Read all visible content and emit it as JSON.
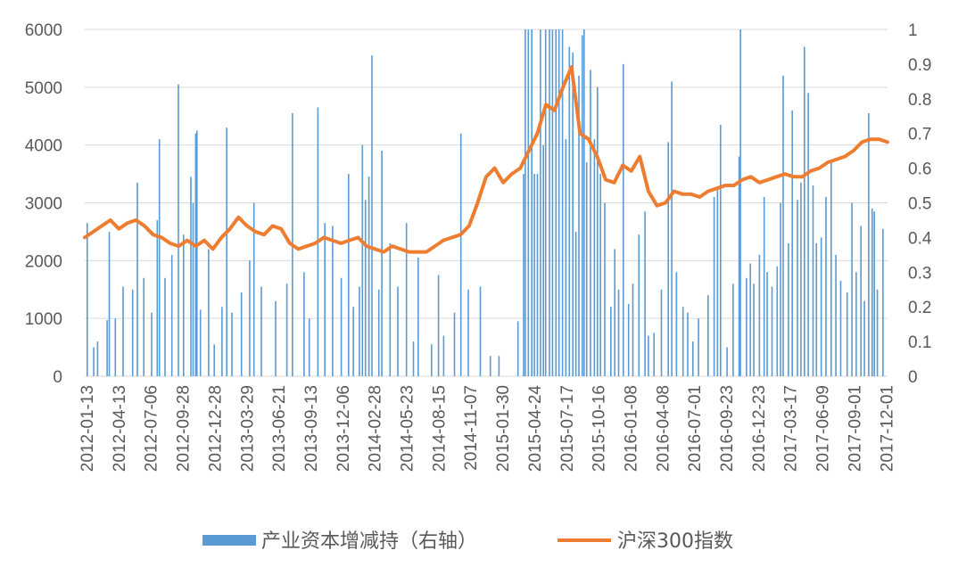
{
  "chart_data": {
    "type": "bar+line",
    "x_ticks": [
      "2012-01-13",
      "2012-04-13",
      "2012-07-06",
      "2012-09-28",
      "2012-12-28",
      "2013-03-29",
      "2013-06-21",
      "2013-09-13",
      "2013-12-06",
      "2014-02-28",
      "2014-05-23",
      "2014-08-15",
      "2014-11-07",
      "2015-01-30",
      "2015-04-24",
      "2015-07-17",
      "2015-10-16",
      "2016-01-08",
      "2016-04-08",
      "2016-07-01",
      "2016-09-23",
      "2016-12-23",
      "2017-03-17",
      "2017-06-09",
      "2017-09-01",
      "2017-12-01"
    ],
    "y_left": {
      "min": 0,
      "max": 6000,
      "ticks": [
        "0",
        "1000",
        "2000",
        "3000",
        "4000",
        "5000",
        "6000"
      ]
    },
    "y_right": {
      "min": 0,
      "max": 1,
      "ticks": [
        "0",
        "0.1",
        "0.2",
        "0.3",
        "0.4",
        "0.5",
        "0.6",
        "0.7",
        "0.8",
        "0.9",
        "1"
      ]
    },
    "grid": "horizontal",
    "legend": {
      "position": "bottom",
      "bar_label": "产业资本增减持（右轴）",
      "line_label": "沪深300指数"
    },
    "colors": {
      "bar": "#5b9bd5",
      "line": "#ed7d31",
      "grid": "#d9d9d9",
      "text": "#595959"
    },
    "line_series": {
      "name": "沪深300指数",
      "points": [
        [
          0,
          2400
        ],
        [
          1,
          2500
        ],
        [
          2,
          2600
        ],
        [
          3,
          2700
        ],
        [
          4,
          2550
        ],
        [
          5,
          2650
        ],
        [
          6,
          2700
        ],
        [
          7,
          2600
        ],
        [
          8,
          2450
        ],
        [
          9,
          2400
        ],
        [
          10,
          2300
        ],
        [
          11,
          2250
        ],
        [
          12,
          2350
        ],
        [
          13,
          2250
        ],
        [
          14,
          2350
        ],
        [
          15,
          2200
        ],
        [
          16,
          2400
        ],
        [
          17,
          2550
        ],
        [
          18,
          2750
        ],
        [
          19,
          2600
        ],
        [
          20,
          2500
        ],
        [
          21,
          2450
        ],
        [
          22,
          2600
        ],
        [
          23,
          2550
        ],
        [
          24,
          2300
        ],
        [
          25,
          2200
        ],
        [
          26,
          2250
        ],
        [
          27,
          2300
        ],
        [
          28,
          2400
        ],
        [
          29,
          2350
        ],
        [
          30,
          2300
        ],
        [
          31,
          2350
        ],
        [
          32,
          2400
        ],
        [
          33,
          2250
        ],
        [
          34,
          2200
        ],
        [
          35,
          2150
        ],
        [
          36,
          2250
        ],
        [
          37,
          2200
        ],
        [
          38,
          2150
        ],
        [
          39,
          2150
        ],
        [
          40,
          2150
        ],
        [
          41,
          2250
        ],
        [
          42,
          2350
        ],
        [
          43,
          2400
        ],
        [
          44,
          2450
        ],
        [
          45,
          2600
        ],
        [
          46,
          3000
        ],
        [
          47,
          3450
        ],
        [
          48,
          3600
        ],
        [
          49,
          3350
        ],
        [
          50,
          3500
        ],
        [
          51,
          3600
        ],
        [
          52,
          3900
        ],
        [
          53,
          4200
        ],
        [
          54,
          4700
        ],
        [
          55,
          4600
        ],
        [
          56,
          5000
        ],
        [
          57,
          5350
        ],
        [
          58,
          4200
        ],
        [
          59,
          4100
        ],
        [
          60,
          3800
        ],
        [
          61,
          3400
        ],
        [
          62,
          3350
        ],
        [
          63,
          3650
        ],
        [
          64,
          3550
        ],
        [
          65,
          3800
        ],
        [
          66,
          3200
        ],
        [
          67,
          2950
        ],
        [
          68,
          3000
        ],
        [
          69,
          3200
        ],
        [
          70,
          3150
        ],
        [
          71,
          3150
        ],
        [
          72,
          3100
        ],
        [
          73,
          3200
        ],
        [
          74,
          3250
        ],
        [
          75,
          3300
        ],
        [
          76,
          3300
        ],
        [
          77,
          3400
        ],
        [
          78,
          3450
        ],
        [
          79,
          3350
        ],
        [
          80,
          3400
        ],
        [
          81,
          3450
        ],
        [
          82,
          3500
        ],
        [
          83,
          3450
        ],
        [
          84,
          3450
        ],
        [
          85,
          3550
        ],
        [
          86,
          3600
        ],
        [
          87,
          3700
        ],
        [
          88,
          3750
        ],
        [
          89,
          3800
        ],
        [
          90,
          3900
        ],
        [
          91,
          4050
        ],
        [
          92,
          4100
        ],
        [
          93,
          4100
        ],
        [
          94,
          4050
        ]
      ]
    },
    "bar_series": {
      "name": "产业资本增减持（右轴）",
      "spikes": [
        [
          0,
          2650
        ],
        [
          1.5,
          500
        ],
        [
          2.4,
          600
        ],
        [
          4.6,
          970
        ],
        [
          5.1,
          2500
        ],
        [
          6.5,
          1000
        ],
        [
          8.3,
          1550
        ],
        [
          10.5,
          1500
        ],
        [
          11.6,
          3350
        ],
        [
          13.1,
          1700
        ],
        [
          14.9,
          1100
        ],
        [
          16.2,
          2700
        ],
        [
          16.7,
          4100
        ],
        [
          18,
          1700
        ],
        [
          19.6,
          2100
        ],
        [
          21.1,
          5050
        ],
        [
          22.3,
          2450
        ],
        [
          24,
          3450
        ],
        [
          24.5,
          3000
        ],
        [
          25.1,
          4200
        ],
        [
          25.4,
          4250
        ],
        [
          26.2,
          1150
        ],
        [
          28.1,
          2200
        ],
        [
          29.4,
          550
        ],
        [
          31.2,
          1200
        ],
        [
          32.3,
          4300
        ],
        [
          33.5,
          1100
        ],
        [
          35.7,
          1450
        ],
        [
          37.6,
          2000
        ],
        [
          38.6,
          3000
        ],
        [
          40.3,
          1550
        ],
        [
          43.6,
          1300
        ],
        [
          46.2,
          1600
        ],
        [
          47.5,
          4550
        ],
        [
          50.2,
          1800
        ],
        [
          51.4,
          1000
        ],
        [
          53.4,
          4650
        ],
        [
          55,
          2650
        ],
        [
          56.8,
          2600
        ],
        [
          58.8,
          1700
        ],
        [
          60.5,
          3500
        ],
        [
          61.6,
          1200
        ],
        [
          63,
          1550
        ],
        [
          63.7,
          4000
        ],
        [
          64.4,
          3050
        ],
        [
          65.2,
          3450
        ],
        [
          65.9,
          5550
        ],
        [
          67.5,
          1500
        ],
        [
          68.2,
          3900
        ],
        [
          70.1,
          2300
        ],
        [
          71.9,
          1550
        ],
        [
          73.9,
          2650
        ],
        [
          75.5,
          600
        ],
        [
          76.6,
          2050
        ],
        [
          79.7,
          550
        ],
        [
          81.3,
          1750
        ],
        [
          82.5,
          700
        ],
        [
          85,
          1100
        ],
        [
          86.5,
          4200
        ],
        [
          88.2,
          1500
        ],
        [
          91,
          1550
        ],
        [
          93.3,
          350
        ],
        [
          95.3,
          350
        ],
        [
          99.7,
          950
        ],
        [
          101,
          3500
        ],
        [
          101.4,
          6000
        ],
        [
          102.1,
          6000
        ],
        [
          102.9,
          6000
        ],
        [
          103.5,
          3500
        ],
        [
          104.2,
          3500
        ],
        [
          104.9,
          6000
        ],
        [
          105.6,
          4000
        ],
        [
          106.1,
          6000
        ],
        [
          107,
          6000
        ],
        [
          107.7,
          6000
        ],
        [
          108.5,
          6000
        ],
        [
          109.2,
          6000
        ],
        [
          110,
          6000
        ],
        [
          110.8,
          4100
        ],
        [
          111.6,
          5700
        ],
        [
          112.4,
          5600
        ],
        [
          113.1,
          2500
        ],
        [
          113.8,
          5200
        ],
        [
          114.6,
          5900
        ],
        [
          115,
          6000
        ],
        [
          115.6,
          3700
        ],
        [
          116.5,
          5300
        ],
        [
          117.4,
          4100
        ],
        [
          118.1,
          5000
        ],
        [
          118.8,
          3500
        ],
        [
          119.8,
          3000
        ],
        [
          121.2,
          1200
        ],
        [
          122.1,
          2200
        ],
        [
          123,
          1500
        ],
        [
          124.1,
          5400
        ],
        [
          125.3,
          1250
        ],
        [
          126.3,
          1600
        ],
        [
          127.7,
          2450
        ],
        [
          129.1,
          2850
        ],
        [
          129.9,
          700
        ],
        [
          131.2,
          750
        ],
        [
          132.9,
          1500
        ],
        [
          134.5,
          4050
        ],
        [
          135.3,
          5100
        ],
        [
          136.4,
          1800
        ],
        [
          137.9,
          1200
        ],
        [
          139,
          1100
        ],
        [
          140.2,
          600
        ],
        [
          141.5,
          1000
        ],
        [
          143.7,
          1400
        ],
        [
          145.1,
          3100
        ],
        [
          145.9,
          3250
        ],
        [
          146.6,
          4350
        ],
        [
          148.1,
          500
        ],
        [
          149.5,
          1600
        ],
        [
          150.9,
          3800
        ],
        [
          151.2,
          6000
        ],
        [
          152.6,
          1700
        ],
        [
          153.5,
          1950
        ],
        [
          154.3,
          1600
        ],
        [
          155.6,
          2100
        ],
        [
          156.7,
          3100
        ],
        [
          157.4,
          1800
        ],
        [
          158.5,
          1550
        ],
        [
          159.7,
          1900
        ],
        [
          160.5,
          3000
        ],
        [
          161.1,
          5200
        ],
        [
          162.3,
          2300
        ],
        [
          163.2,
          4600
        ],
        [
          164.4,
          3050
        ],
        [
          165.2,
          3350
        ],
        [
          166,
          5700
        ],
        [
          166.9,
          4900
        ],
        [
          168,
          3300
        ],
        [
          168.8,
          2300
        ],
        [
          169.9,
          2400
        ],
        [
          171,
          3100
        ],
        [
          172.2,
          3700
        ],
        [
          173.3,
          2100
        ],
        [
          174.4,
          1650
        ],
        [
          175.9,
          1450
        ],
        [
          177,
          3000
        ],
        [
          178,
          1800
        ],
        [
          179.1,
          2600
        ],
        [
          179.9,
          1300
        ],
        [
          180.9,
          4550
        ],
        [
          181.7,
          2900
        ],
        [
          182.2,
          2850
        ],
        [
          182.9,
          1500
        ],
        [
          184.2,
          2550
        ]
      ],
      "x_max": 185
    }
  }
}
